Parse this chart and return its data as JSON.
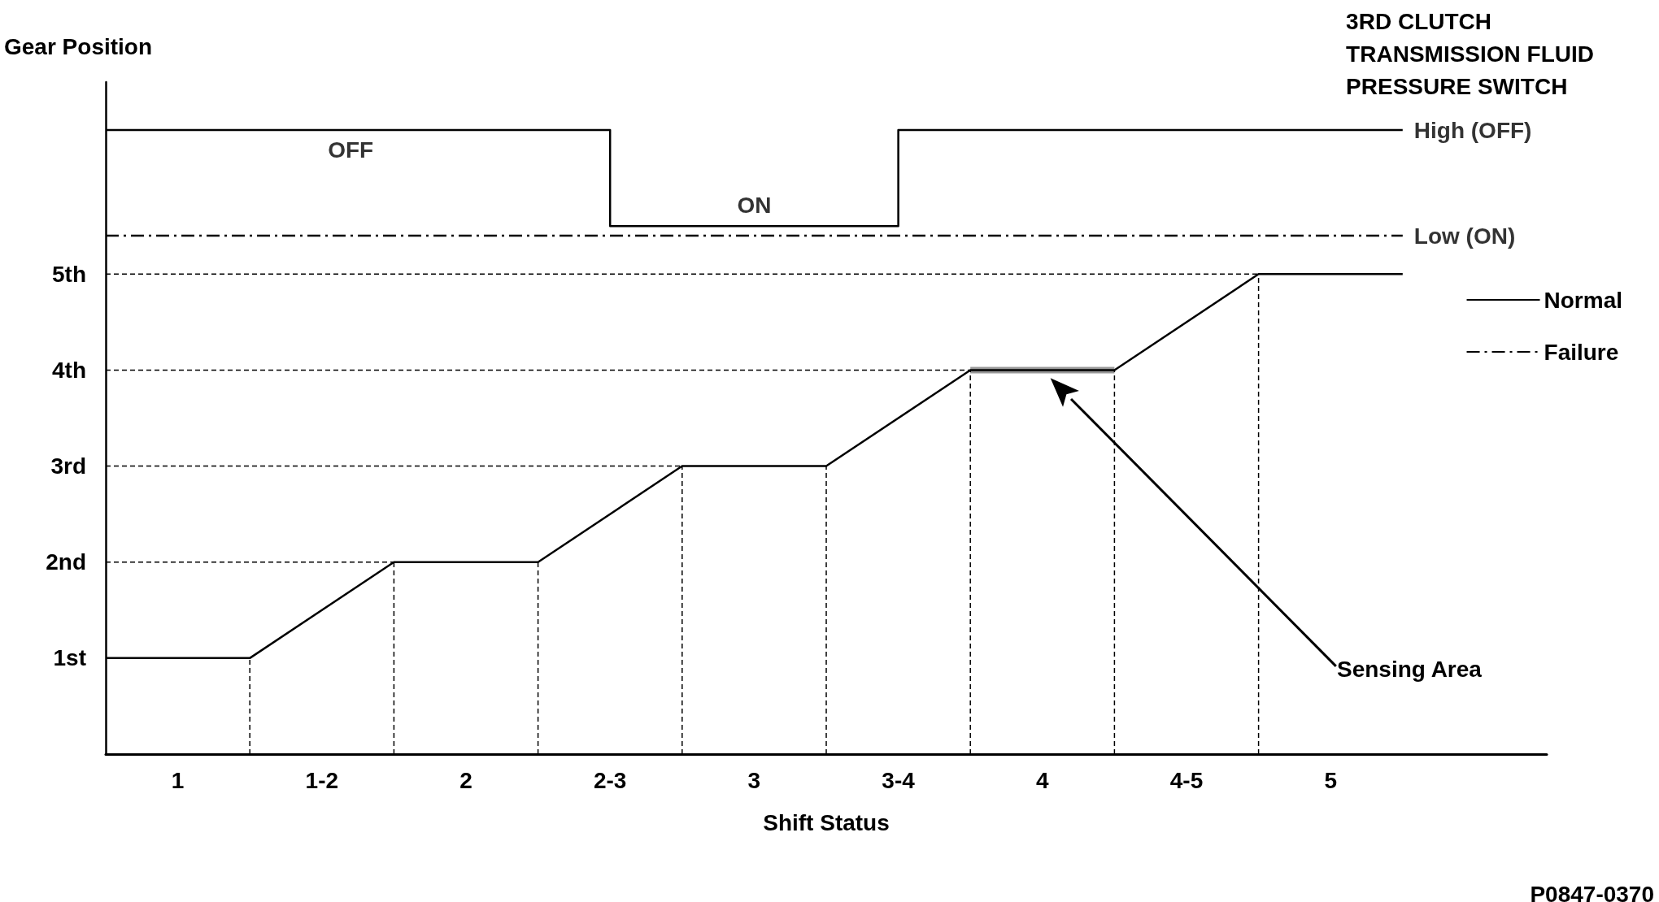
{
  "chart_data": {
    "type": "line",
    "ylabel": "Gear Position",
    "xlabel": "Shift Status",
    "xlim": [
      0.75,
      5.75
    ],
    "xticks": [
      1,
      {
        "value": 1.5,
        "label": "1-2"
      },
      2,
      {
        "value": 2.5,
        "label": "2-3"
      },
      3,
      {
        "value": 3.5,
        "label": "3-4"
      },
      4,
      {
        "value": 4.5,
        "label": "4-5"
      },
      5
    ],
    "ylim": [
      0,
      7
    ],
    "yticks": [
      {
        "value": 1,
        "label": "1st"
      },
      {
        "value": 2,
        "label": "2nd"
      },
      {
        "value": 3,
        "label": "3rd"
      },
      {
        "value": 4,
        "label": "4th"
      },
      {
        "value": 5,
        "label": "5th"
      }
    ],
    "grid": false,
    "legend": "right",
    "marker": "none",
    "series": [
      {
        "color": "#000000",
        "line_style": "solid",
        "x": [
          0.75,
          1.25,
          1.75,
          2.25,
          2.75,
          3.25,
          3.75,
          4.25,
          4.75,
          5.25
        ],
        "values": [
          1,
          1,
          2,
          2,
          3,
          3,
          4,
          4,
          5,
          5
        ]
      },
      {
        "name": "Normal",
        "color": "#000000",
        "line_style": "solid",
        "x": [
          0.75,
          2.5,
          2.5,
          3.5,
          3.5,
          5.25
        ],
        "values": [
          6.5,
          6.5,
          5.5,
          5.5,
          6.5,
          6.5
        ]
      },
      {
        "name": "Failure",
        "color": "#000000",
        "line_style": "dashdot",
        "x": [
          0.75,
          5.25
        ],
        "values": [
          5.4,
          5.4
        ]
      },
      {
        "color": "#999999",
        "line_style": "solid",
        "x": [
          3.75,
          4.25
        ],
        "values": [
          4,
          4
        ]
      },
      {
        "color": "#000000",
        "line_style": "dashed",
        "x": [
          1.25,
          1.25
        ],
        "values": [
          0,
          1
        ]
      },
      {
        "color": "#000000",
        "line_style": "dashed",
        "x": [
          1.75,
          1.75
        ],
        "values": [
          0,
          2
        ]
      },
      {
        "color": "#000000",
        "line_style": "dashed",
        "x": [
          2.25,
          2.25
        ],
        "values": [
          0,
          2
        ]
      },
      {
        "color": "#000000",
        "line_style": "dashed",
        "x": [
          2.75,
          2.75
        ],
        "values": [
          0,
          3
        ]
      },
      {
        "color": "#000000",
        "line_style": "dashed",
        "x": [
          3.25,
          3.25
        ],
        "values": [
          0,
          3
        ]
      },
      {
        "color": "#000000",
        "line_style": "dashed",
        "x": [
          3.75,
          3.75
        ],
        "values": [
          0,
          4
        ]
      },
      {
        "color": "#000000",
        "line_style": "dashed",
        "x": [
          4.25,
          4.25
        ],
        "values": [
          0,
          4
        ]
      },
      {
        "color": "#000000",
        "line_style": "dashed",
        "x": [
          4.75,
          4.75
        ],
        "values": [
          0,
          5
        ]
      },
      {
        "color": "#000000",
        "line_style": "dashed",
        "x": [
          0.75,
          1.75
        ],
        "values": [
          2,
          2
        ]
      },
      {
        "color": "#000000",
        "line_style": "dashed",
        "x": [
          0.75,
          2.75
        ],
        "values": [
          3,
          3
        ]
      },
      {
        "color": "#000000",
        "line_style": "dashed",
        "x": [
          0.75,
          3.75
        ],
        "values": [
          4,
          4
        ]
      },
      {
        "color": "#000000",
        "line_style": "dashed",
        "x": [
          0.75,
          4.75
        ],
        "values": [
          5,
          5
        ]
      }
    ],
    "annotations": [
      {
        "text": "OFF",
        "x": 1.6,
        "y": 6.5
      },
      {
        "text": "ON",
        "x": 3.0,
        "y": 5.5
      },
      {
        "text": "High (OFF)",
        "x": 5.25,
        "y": 6.5
      },
      {
        "text": "Low (ON)",
        "x": 5.25,
        "y": 5.4
      },
      "Sensing Area",
      "3RD CLUTCH\nTRANSMISSION FLUID\nPRESSURE SWITCH",
      "P0847-0370"
    ]
  }
}
